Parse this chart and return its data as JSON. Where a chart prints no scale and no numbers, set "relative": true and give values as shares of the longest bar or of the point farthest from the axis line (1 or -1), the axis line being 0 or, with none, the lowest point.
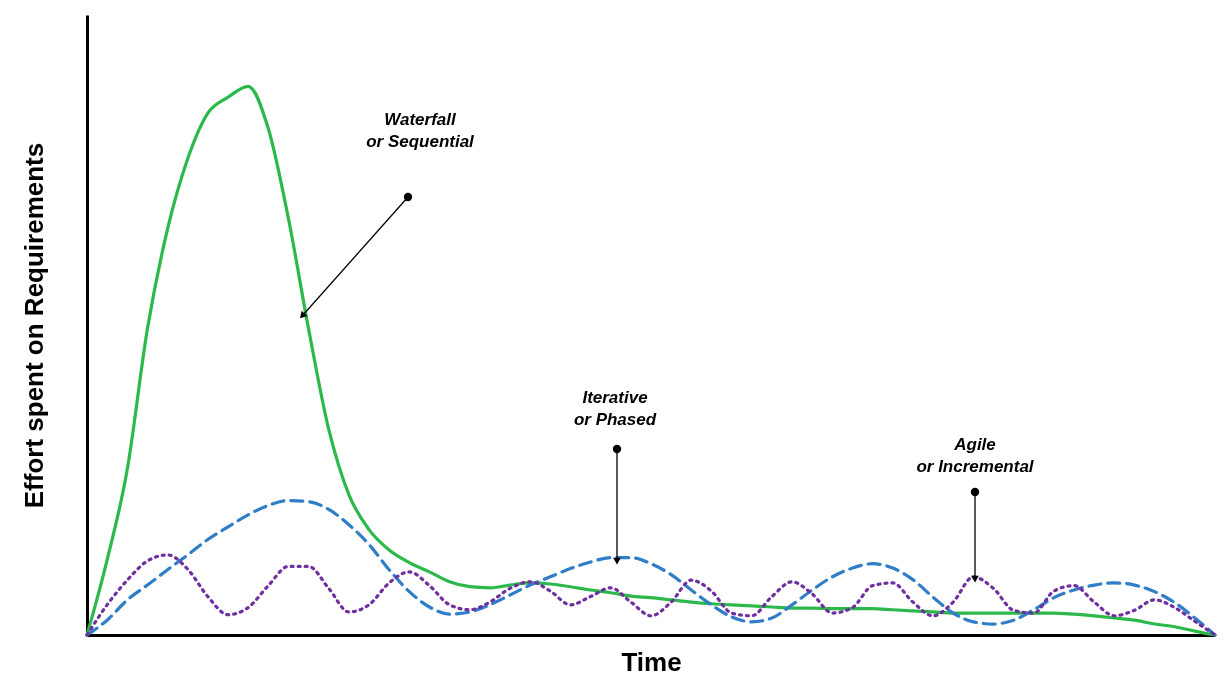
{
  "chart_data": {
    "type": "line",
    "relative": true,
    "xlabel": "Time",
    "ylabel": "Effort spent on Requirements",
    "categories": [
      null,
      null,
      null,
      null,
      null,
      null,
      null,
      null,
      null,
      null,
      null,
      null,
      null,
      null,
      null,
      null,
      null,
      null,
      null,
      null,
      null,
      null,
      null,
      null,
      null,
      null,
      null,
      null,
      null,
      null,
      null,
      null,
      null,
      null,
      null,
      null,
      null,
      null,
      null,
      null,
      null,
      null,
      null,
      null,
      null,
      null,
      null,
      null,
      null,
      null,
      null,
      null,
      null,
      null,
      null,
      null,
      null
    ],
    "series": [
      {
        "color": "#2db84b",
        "line_style": "solid",
        "values": [
          0,
          0.137,
          0.302,
          0.558,
          0.74,
          0.868,
          0.951,
          0.98,
          1.0,
          0.923,
          0.759,
          0.558,
          0.375,
          0.256,
          0.192,
          0.155,
          0.132,
          0.115,
          0.097,
          0.088,
          0.086,
          0.091,
          0.095,
          0.093,
          0.088,
          0.082,
          0.077,
          0.071,
          0.068,
          0.064,
          0.06,
          0.057,
          0.055,
          0.053,
          0.051,
          0.049,
          0.049,
          0.048,
          0.048,
          0.048,
          0.046,
          0.044,
          0.042,
          0.04,
          0.04,
          0.04,
          0.04,
          0.04,
          0.04,
          0.038,
          0.035,
          0.031,
          0.027,
          0.02,
          0.015,
          0.007,
          0
        ]
      },
      {
        "color": "#2f7ec7",
        "line_style": "dashed",
        "values": [
          0,
          0.027,
          0.064,
          0.091,
          0.119,
          0.146,
          0.174,
          0.197,
          0.219,
          0.236,
          0.245,
          0.243,
          0.229,
          0.201,
          0.165,
          0.119,
          0.079,
          0.051,
          0.038,
          0.042,
          0.055,
          0.073,
          0.091,
          0.106,
          0.121,
          0.133,
          0.141,
          0.141,
          0.13,
          0.11,
          0.082,
          0.055,
          0.033,
          0.024,
          0.031,
          0.055,
          0.082,
          0.106,
          0.122,
          0.13,
          0.122,
          0.101,
          0.069,
          0.04,
          0.024,
          0.02,
          0.027,
          0.046,
          0.068,
          0.082,
          0.091,
          0.095,
          0.091,
          0.079,
          0.059,
          0.031,
          0
        ]
      },
      {
        "color": "#7030a0",
        "line_style": "dotted",
        "values": [
          0,
          0.055,
          0.1,
          0.135,
          0.146,
          0.12,
          0.07,
          0.037,
          0.05,
          0.09,
          0.125,
          0.125,
          0.085,
          0.042,
          0.055,
          0.095,
          0.115,
          0.09,
          0.055,
          0.046,
          0.06,
          0.085,
          0.097,
          0.08,
          0.055,
          0.07,
          0.086,
          0.06,
          0.035,
          0.06,
          0.1,
          0.08,
          0.04,
          0.035,
          0.07,
          0.097,
          0.075,
          0.04,
          0.05,
          0.09,
          0.095,
          0.06,
          0.035,
          0.06,
          0.106,
          0.085,
          0.045,
          0.04,
          0.08,
          0.09,
          0.06,
          0.035,
          0.045,
          0.064,
          0.05,
          0.025,
          0
        ]
      }
    ],
    "annotations": [
      "Waterfall\nor Sequential",
      "Iterative\nor Phased",
      "Agile\nor Incremental"
    ],
    "grid": false,
    "tick_labels": false
  }
}
